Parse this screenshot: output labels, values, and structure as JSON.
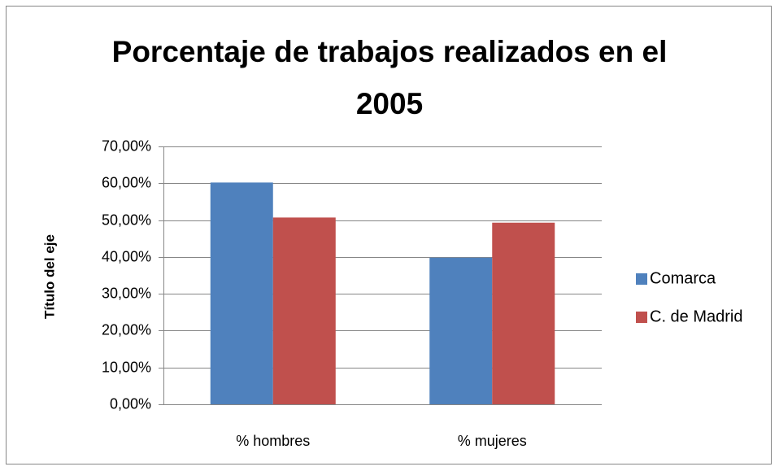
{
  "chart_data": {
    "type": "bar",
    "title": "Porcentaje de trabajos realizados en el 2005",
    "y_label": "Título del eje",
    "categories": [
      "% hombres",
      "% mujeres"
    ],
    "series": [
      {
        "name": "Comarca",
        "color": "#4f81bd",
        "values": [
          60.2,
          39.8
        ]
      },
      {
        "name": "C. de Madrid",
        "color": "#c0504d",
        "values": [
          50.7,
          49.3
        ]
      }
    ],
    "ylim": [
      0,
      70
    ],
    "yticks": [
      {
        "value": 0,
        "label": "0,00%"
      },
      {
        "value": 10,
        "label": "10,00%"
      },
      {
        "value": 20,
        "label": "20,00%"
      },
      {
        "value": 30,
        "label": "30,00%"
      },
      {
        "value": 40,
        "label": "40,00%"
      },
      {
        "value": 50,
        "label": "50,00%"
      },
      {
        "value": 60,
        "label": "60,00%"
      },
      {
        "value": 70,
        "label": "70,00%"
      }
    ],
    "grid": true,
    "legend": "right"
  }
}
